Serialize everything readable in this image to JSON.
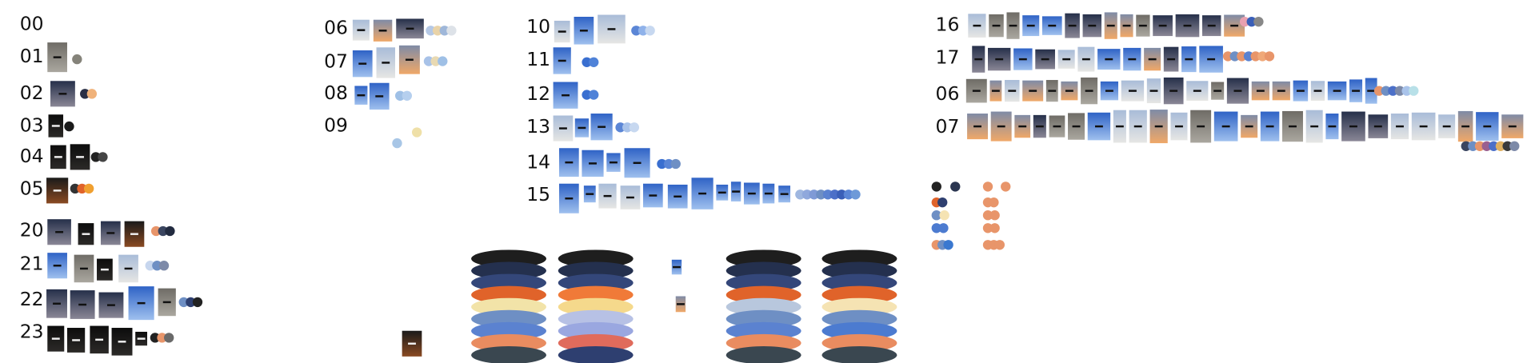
{
  "groups": [
    {
      "rows": [
        "00",
        "01",
        "02",
        "03",
        "04",
        "05",
        "20",
        "21",
        "22",
        "23"
      ]
    },
    {
      "rows": [
        "06",
        "07",
        "08",
        "09"
      ]
    },
    {
      "rows": [
        "10",
        "11",
        "12",
        "13",
        "14",
        "15"
      ]
    },
    {
      "rows": [
        "16",
        "17",
        "06",
        "07"
      ]
    }
  ]
}
